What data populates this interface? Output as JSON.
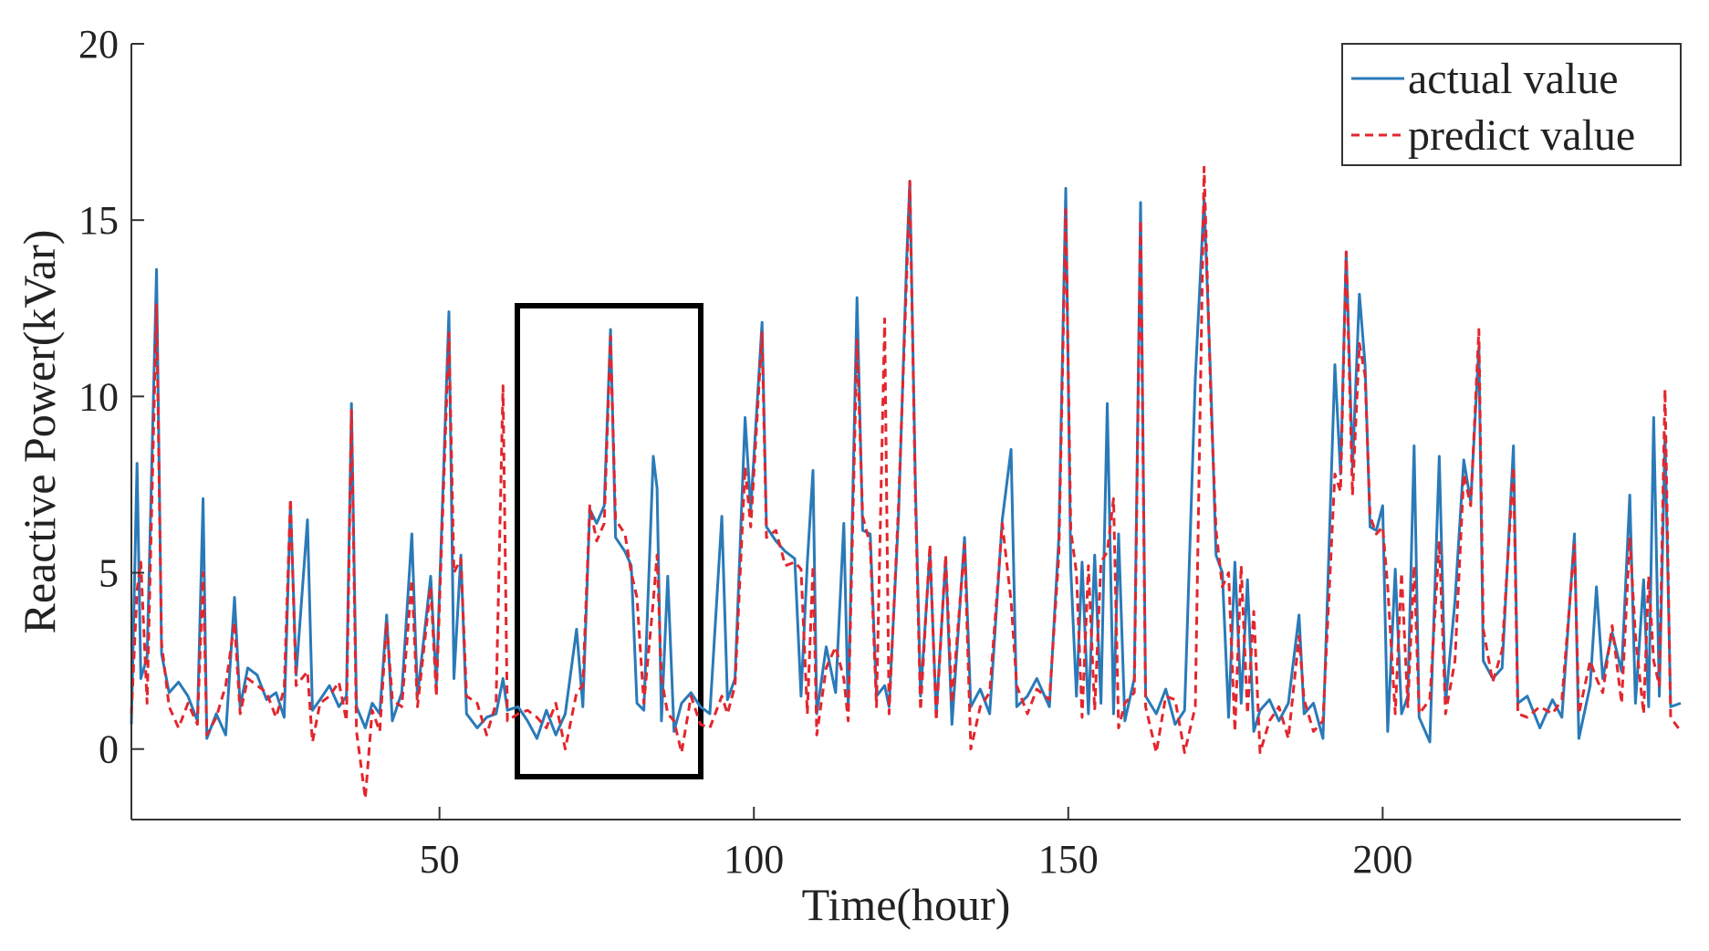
{
  "chart_data": {
    "type": "line",
    "xlabel": "Time(hour)",
    "ylabel": "Reactive Power(kVar)",
    "xlim": [
      1,
      247.4
    ],
    "ylim": [
      -2,
      20
    ],
    "xticks": [
      50,
      100,
      150,
      200
    ],
    "yticks": [
      0,
      5,
      10,
      15,
      20
    ],
    "legend": "upper right",
    "x": [
      1,
      1.9,
      2.5,
      3.5,
      5.0,
      5.8,
      7,
      8.5,
      10,
      11.5,
      12.4,
      13,
      14.5,
      16,
      17.4,
      18.3,
      19.5,
      21,
      22.5,
      24,
      25.3,
      26.3,
      27.2,
      29.0,
      29.8,
      31,
      32.5,
      34,
      35.2,
      36.0,
      36.8,
      38.2,
      39.3,
      40.5,
      41.6,
      42.5,
      44,
      45.6,
      46.5,
      48.6,
      49.5,
      51.5,
      52.3,
      53.4,
      54.3,
      56,
      57.5,
      59,
      60.1,
      60.8,
      62.5,
      64,
      65.5,
      67,
      68.5,
      70,
      71.8,
      72.8,
      73.9,
      75,
      76.2,
      77.2,
      78,
      79.5,
      80.5,
      81.4,
      82.5,
      84.0,
      84.6,
      85.3,
      86.3,
      87.3,
      88.5,
      90,
      91.5,
      93,
      94.9,
      95.8,
      97,
      98.6,
      99.5,
      101.3,
      102,
      103.5,
      105,
      106.5,
      107.5,
      108.5,
      109.4,
      110,
      111.5,
      113,
      114.3,
      115,
      116.4,
      117.3,
      118.5,
      119.5,
      120.8,
      121.5,
      123,
      124.3,
      124.8,
      125.7,
      126.5,
      128,
      129,
      130.5,
      131.5,
      133.5,
      134.5,
      136,
      137.5,
      139.5,
      140.9,
      141.8,
      143.5,
      145,
      147,
      148.5,
      149.6,
      150.4,
      151.3,
      152.2,
      153.2,
      154.2,
      155.2,
      156.2,
      157.2,
      158,
      159,
      160.5,
      161.5,
      162.3,
      164,
      165.5,
      167,
      168.5,
      170.2,
      171.6,
      172.7,
      173.5,
      174.5,
      175.5,
      176.5,
      177.5,
      178.5,
      179.5,
      180.5,
      182,
      183.5,
      185,
      186.7,
      187.5,
      189,
      190.5,
      192.4,
      193.3,
      194.2,
      195.2,
      196.3,
      197.2,
      198,
      199,
      200,
      200.8,
      202,
      203,
      204,
      205,
      205.8,
      207.5,
      209,
      210,
      211.5,
      212.9,
      214,
      215.3,
      216,
      217.5,
      219,
      220.8,
      221.5,
      223,
      225,
      227,
      228.5,
      230.5,
      231.2,
      233,
      234,
      235,
      236.5,
      238,
      239.3,
      240.2,
      241.5,
      242.3,
      243.1,
      244,
      244.9,
      245.8,
      247.4
    ],
    "series": [
      {
        "name": "actual value",
        "color": "#2a7ab8",
        "dash": false,
        "values": [
          0.7,
          8.1,
          2.0,
          2.6,
          13.6,
          2.7,
          1.6,
          1.9,
          1.5,
          0.8,
          7.1,
          0.3,
          1.0,
          0.4,
          4.3,
          1.2,
          2.3,
          2.1,
          1.4,
          1.6,
          0.9,
          7.0,
          2.1,
          6.5,
          1.1,
          1.4,
          1.8,
          1.2,
          1.5,
          9.8,
          1.2,
          0.6,
          1.3,
          1.0,
          3.8,
          0.8,
          1.6,
          6.1,
          1.5,
          4.9,
          1.8,
          12.4,
          2.0,
          5.5,
          1.0,
          0.6,
          0.9,
          1.0,
          2.0,
          1.1,
          1.2,
          0.8,
          0.3,
          1.1,
          0.4,
          1.0,
          3.4,
          1.2,
          6.8,
          6.4,
          6.9,
          11.9,
          6.0,
          5.6,
          5.2,
          1.3,
          1.1,
          8.3,
          7.4,
          0.8,
          4.9,
          0.5,
          1.3,
          1.6,
          1.2,
          1.0,
          6.6,
          1.4,
          2.0,
          9.4,
          6.8,
          12.1,
          6.3,
          5.9,
          5.6,
          5.4,
          1.5,
          5.3,
          7.9,
          1.0,
          2.9,
          1.6,
          6.4,
          1.1,
          12.8,
          6.2,
          6.1,
          1.5,
          1.8,
          1.2,
          6.6,
          13.9,
          16.1,
          7.4,
          1.5,
          5.6,
          1.0,
          5.4,
          0.7,
          6.0,
          1.2,
          1.7,
          1.0,
          6.5,
          8.5,
          1.2,
          1.5,
          2.0,
          1.2,
          6.0,
          15.9,
          5.1,
          1.5,
          5.3,
          1.0,
          5.5,
          1.3,
          9.8,
          1.0,
          6.1,
          0.8,
          2.0,
          15.5,
          1.5,
          1.0,
          1.7,
          0.7,
          1.1,
          10.5,
          15.6,
          10.2,
          5.5,
          5.0,
          0.9,
          5.3,
          1.3,
          4.8,
          0.5,
          1.1,
          1.4,
          0.8,
          1.3,
          3.8,
          1.0,
          1.3,
          0.3,
          10.9,
          7.8,
          14.1,
          8.0,
          12.9,
          10.9,
          6.3,
          6.2,
          6.9,
          0.5,
          5.1,
          1.0,
          1.5,
          8.6,
          0.9,
          0.2,
          8.3,
          1.3,
          4.2,
          8.2,
          7.0,
          11.4,
          2.5,
          2.0,
          2.3,
          8.6,
          1.3,
          1.5,
          0.6,
          1.4,
          0.9,
          6.1,
          0.3,
          1.8,
          4.6,
          2.0,
          3.3,
          2.2,
          7.2,
          1.3,
          4.8,
          1.2,
          9.4,
          1.5,
          8.9,
          1.2,
          1.3
        ]
      },
      {
        "name": "predict value",
        "color": "#e3262d",
        "dash": true,
        "values": [
          1.0,
          4.5,
          5.3,
          1.3,
          12.6,
          3.0,
          1.2,
          0.6,
          1.3,
          0.7,
          5.0,
          0.4,
          0.9,
          1.8,
          3.6,
          1.0,
          2.0,
          1.8,
          1.6,
          0.9,
          1.7,
          7.1,
          1.8,
          2.2,
          0.2,
          1.3,
          1.5,
          1.9,
          0.8,
          9.6,
          0.5,
          -1.4,
          1.1,
          0.5,
          3.6,
          1.4,
          1.2,
          4.8,
          1.2,
          4.6,
          1.5,
          11.8,
          5.0,
          5.4,
          1.5,
          1.3,
          0.4,
          1.3,
          10.3,
          0.8,
          1.0,
          1.1,
          0.9,
          0.6,
          1.3,
          0.0,
          1.6,
          1.8,
          6.9,
          5.9,
          6.4,
          11.7,
          6.5,
          6.1,
          5.0,
          4.3,
          1.3,
          4.2,
          5.5,
          2.0,
          1.0,
          0.8,
          -0.1,
          1.5,
          0.7,
          0.6,
          1.5,
          1.0,
          1.8,
          8.0,
          6.3,
          11.8,
          6.0,
          6.2,
          5.2,
          5.3,
          5.1,
          1.0,
          5.2,
          0.4,
          2.3,
          2.9,
          2.0,
          0.8,
          11.6,
          6.6,
          5.8,
          1.2,
          12.2,
          1.0,
          6.9,
          13.4,
          16.1,
          7.0,
          1.1,
          5.8,
          0.8,
          5.5,
          1.3,
          5.8,
          0.0,
          1.2,
          1.6,
          6.4,
          4.2,
          1.8,
          1.0,
          1.7,
          1.4,
          5.5,
          15.3,
          6.2,
          5.0,
          0.9,
          5.2,
          1.1,
          5.3,
          5.6,
          7.1,
          0.6,
          1.3,
          1.6,
          15.0,
          1.2,
          -0.1,
          1.5,
          1.4,
          -0.1,
          1.2,
          16.5,
          9.8,
          6.2,
          4.6,
          5.0,
          0.5,
          5.2,
          1.0,
          3.9,
          -0.1,
          0.8,
          1.2,
          0.3,
          3.2,
          1.4,
          0.5,
          0.8,
          7.8,
          7.3,
          14.1,
          7.2,
          11.5,
          10.6,
          6.6,
          6.1,
          6.3,
          4.6,
          1.0,
          5.0,
          1.2,
          5.2,
          1.0,
          1.4,
          5.9,
          1.0,
          2.5,
          7.8,
          6.9,
          11.9,
          3.4,
          1.9,
          2.8,
          8.0,
          1.0,
          0.9,
          1.2,
          1.0,
          1.4,
          5.8,
          1.0,
          2.5,
          2.0,
          1.6,
          3.5,
          1.3,
          6.0,
          3.2,
          1.0,
          4.9,
          2.5,
          1.8,
          10.2,
          0.9,
          0.5
        ]
      }
    ]
  }
}
